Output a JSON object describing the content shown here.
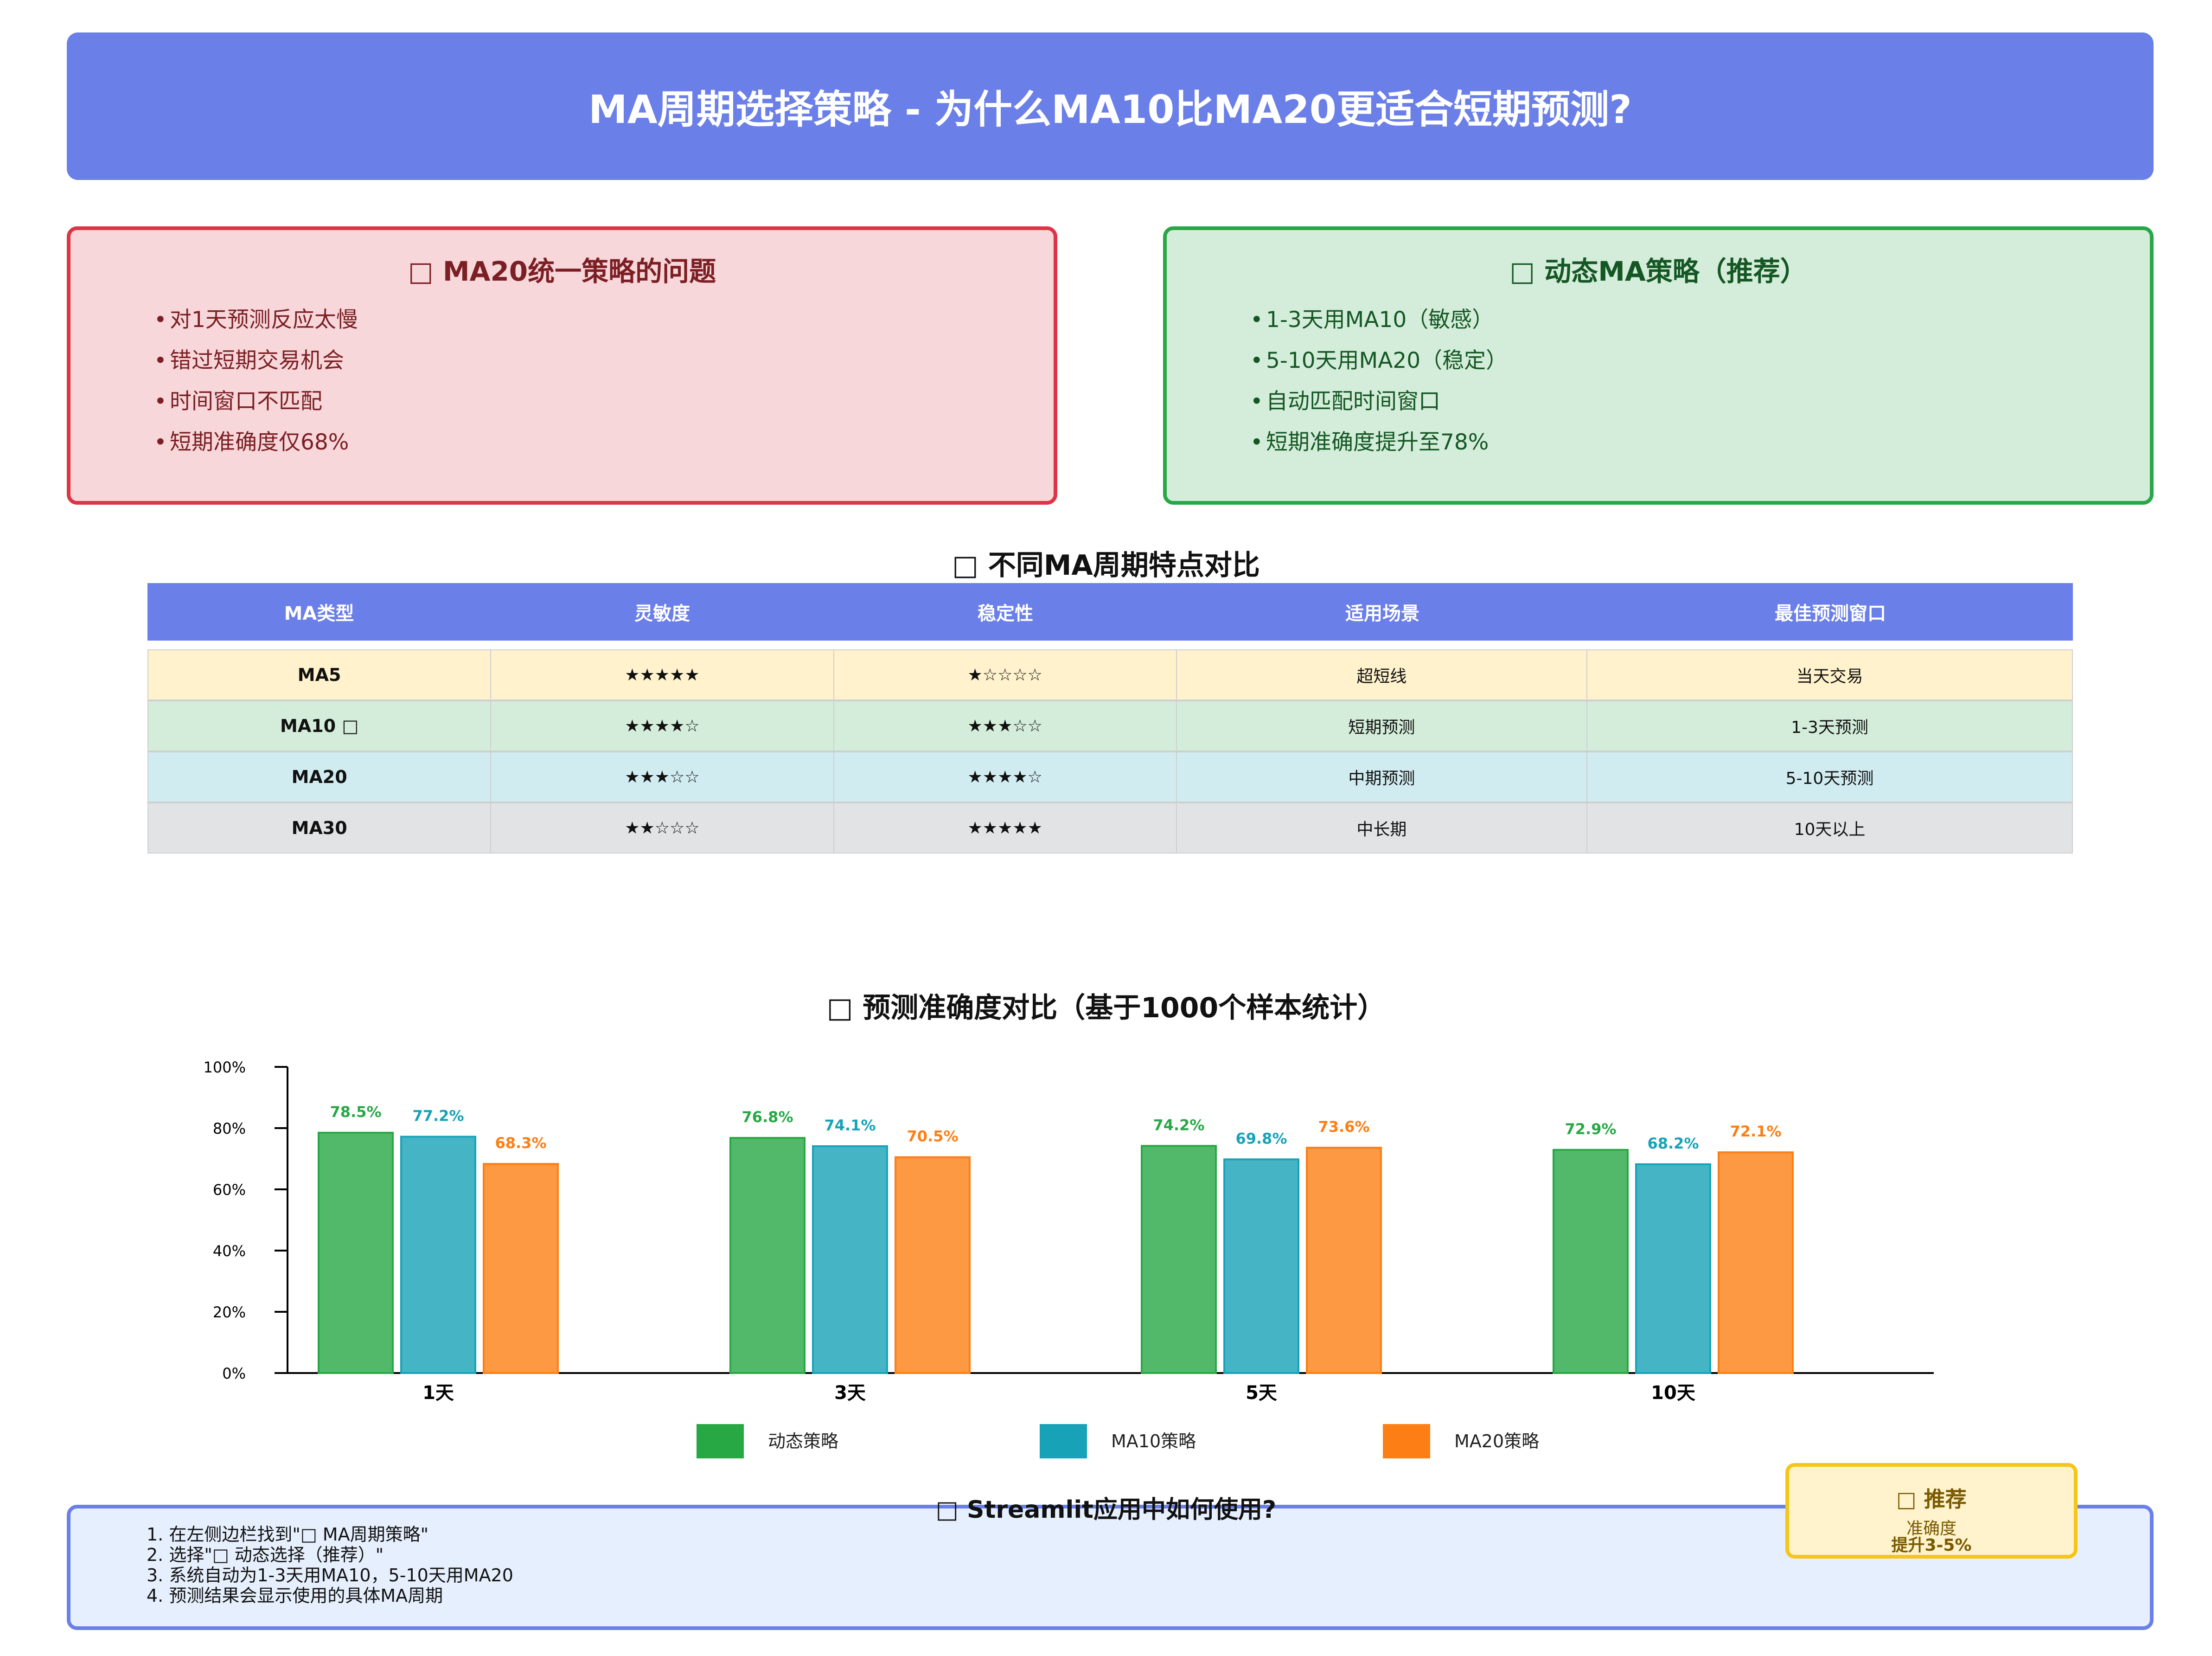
{
  "header": {
    "title": "MA周期选择策略 - 为什么MA10比MA20更适合短期预测?"
  },
  "problem": {
    "icon": "cross-icon",
    "title": "MA20统一策略的问题",
    "items": [
      "对1天预测反应太慢",
      "错过短期交易机会",
      "时间窗口不匹配",
      "短期准确度仅68%"
    ]
  },
  "solution": {
    "icon": "check-icon",
    "title": "动态MA策略（推荐）",
    "items": [
      "1-3天用MA10（敏感）",
      "5-10天用MA20（稳定）",
      "自动匹配时间窗口",
      "短期准确度提升至78%"
    ]
  },
  "table": {
    "icon": "chart-icon",
    "title": "不同MA周期特点对比",
    "headers": [
      "MA类型",
      "灵敏度",
      "稳定性",
      "适用场景",
      "最佳预测窗口"
    ],
    "rows": [
      {
        "cells": [
          "MA5",
          "★★★★★",
          "★☆☆☆☆",
          "超短线",
          "当天交易"
        ],
        "color": "#fff2cc"
      },
      {
        "cells": [
          "MA10 □",
          "★★★★☆",
          "★★★☆☆",
          "短期预测",
          "1-3天预测"
        ],
        "color": "#d4edda"
      },
      {
        "cells": [
          "MA20",
          "★★★☆☆",
          "★★★★☆",
          "中期预测",
          "5-10天预测"
        ],
        "color": "#d1ecf1"
      },
      {
        "cells": [
          "MA30",
          "★★☆☆☆",
          "★★★★★",
          "中长期",
          "10天以上"
        ],
        "color": "#e2e3e5"
      }
    ]
  },
  "chart_title": {
    "icon": "chart-icon",
    "text": "预测准确度对比（基于1000个样本统计）"
  },
  "chart_data": {
    "type": "bar",
    "categories": [
      "1天",
      "3天",
      "5天",
      "10天"
    ],
    "series": [
      {
        "name": "动态策略",
        "values": [
          78.5,
          76.8,
          74.2,
          72.9
        ],
        "color": "#28a745",
        "label_color": "#28a745"
      },
      {
        "name": "MA10策略",
        "values": [
          77.2,
          74.1,
          69.8,
          68.2
        ],
        "color": "#17a2b8",
        "label_color": "#17a2b8"
      },
      {
        "name": "MA20策略",
        "values": [
          68.3,
          70.5,
          73.6,
          72.1
        ],
        "color": "#fd7e14",
        "label_color": "#fd7e14"
      }
    ],
    "yticks": [
      "0%",
      "20%",
      "40%",
      "60%",
      "80%",
      "100%"
    ],
    "ylim": [
      0,
      100
    ],
    "legend": "bottom",
    "grid": false
  },
  "recommend": {
    "icon": "bulb-icon",
    "title": "推荐",
    "line1": "准确度",
    "line2": "提升3-5%"
  },
  "usage": {
    "icon": "question-icon",
    "title": "Streamlit应用中如何使用?",
    "items": [
      "1. 在左侧边栏找到\"□ MA周期策略\"",
      "2. 选择\"□ 动态选择（推荐）\"",
      "3. 系统自动为1-3天用MA10，5-10天用MA20",
      "4. 预测结果会显示使用的具体MA周期"
    ]
  },
  "colors": {
    "accent": "#6b7fe8",
    "problem": "#dc3545",
    "solution": "#28a745",
    "badge": "#f5c518"
  }
}
